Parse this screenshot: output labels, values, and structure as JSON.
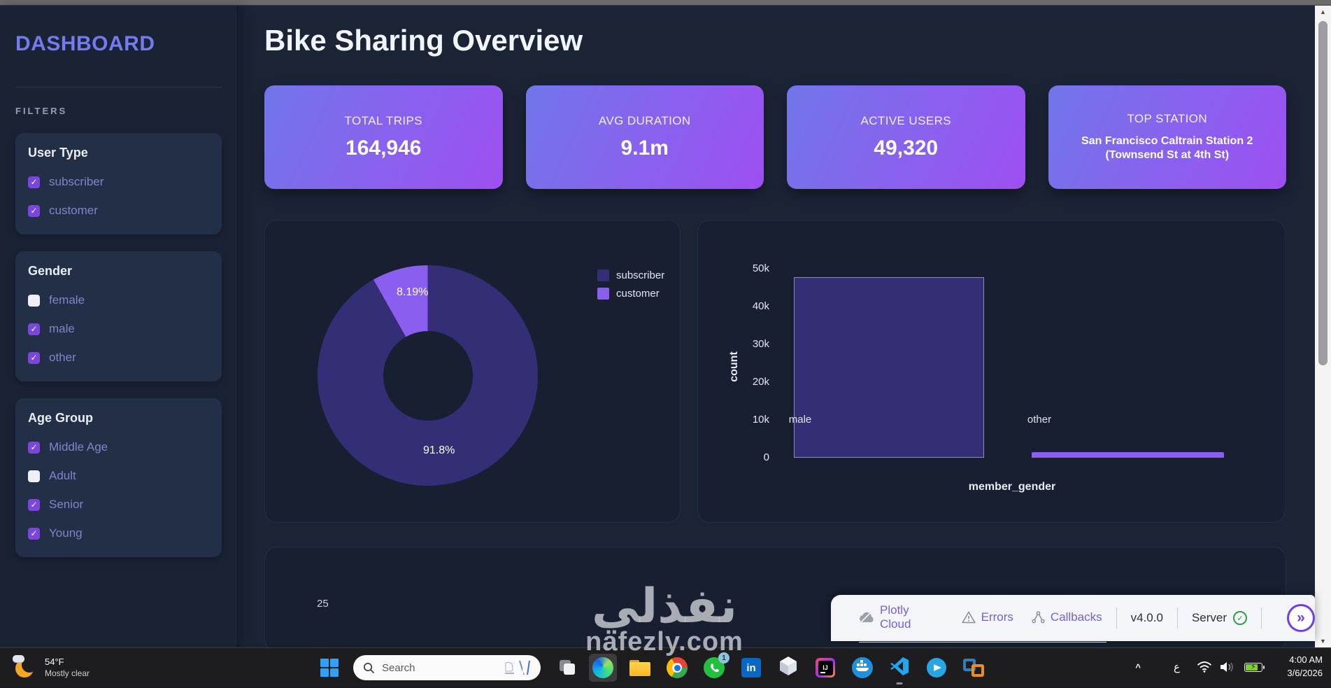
{
  "sidebar": {
    "title": "DASHBOARD",
    "filters_label": "FILTERS",
    "groups": [
      {
        "title": "User Type",
        "options": [
          {
            "label": "subscriber",
            "checked": true
          },
          {
            "label": "customer",
            "checked": true
          }
        ]
      },
      {
        "title": "Gender",
        "options": [
          {
            "label": "female",
            "checked": false
          },
          {
            "label": "male",
            "checked": true
          },
          {
            "label": "other",
            "checked": true
          }
        ]
      },
      {
        "title": "Age Group",
        "options": [
          {
            "label": "Middle Age",
            "checked": true
          },
          {
            "label": "Adult",
            "checked": false
          },
          {
            "label": "Senior",
            "checked": true
          },
          {
            "label": "Young",
            "checked": true
          }
        ]
      }
    ]
  },
  "header": {
    "title": "Bike Sharing Overview"
  },
  "kpis": [
    {
      "label": "TOTAL TRIPS",
      "value": "164,946"
    },
    {
      "label": "AVG DURATION",
      "value": "9.1m"
    },
    {
      "label": "ACTIVE USERS",
      "value": "49,320"
    },
    {
      "label": "TOP STATION",
      "value": "San Francisco Caltrain Station 2 (Townsend St at 4th St)"
    }
  ],
  "kpi_accent": {
    "gradient_start": "#7176e9",
    "gradient_end": "#9e4ff2"
  },
  "chart_data": [
    {
      "type": "pie",
      "labels": [
        "subscriber",
        "customer"
      ],
      "values": [
        91.8,
        8.19
      ],
      "value_labels": [
        "91.8%",
        "8.19%"
      ],
      "colors": [
        "#332e76",
        "#8a5ff0"
      ],
      "hole": 0.4,
      "legend_position": "right"
    },
    {
      "type": "bar",
      "categories": [
        "male",
        "other"
      ],
      "values": [
        47800,
        1400
      ],
      "colors": [
        "#332e76",
        "#8a5ff0"
      ],
      "xlabel": "member_gender",
      "ylabel": "count",
      "ylim": [
        0,
        50000
      ],
      "yticks": [
        "0",
        "10k",
        "20k",
        "30k",
        "40k",
        "50k"
      ],
      "grid": false
    },
    {
      "type": "partial",
      "note": "chart cut off at bottom edge",
      "visible_tick": "25"
    }
  ],
  "devtools": {
    "items": [
      {
        "label": "Plotly Cloud"
      },
      {
        "label": "Errors"
      },
      {
        "label": "Callbacks"
      }
    ],
    "version": "v4.0.0",
    "server_label": "Server",
    "toggle_glyph": "»",
    "check_glyph": "✓",
    "accent": "#6f3df0",
    "status_color": "#2f9e44"
  },
  "watermark": {
    "line1": "نفذلي",
    "line2": "nafezly.com"
  },
  "taskbar": {
    "weather": {
      "temp": "54°F",
      "condition": "Mostly clear"
    },
    "search": {
      "placeholder": "Search"
    },
    "whatsapp_badge": "1",
    "linkedin_glyph": "in",
    "intellij_glyph": "IJ",
    "tray": {
      "chevron": "^",
      "language": "ع",
      "time": "4:00 AM",
      "date": "3/6/2026"
    }
  }
}
